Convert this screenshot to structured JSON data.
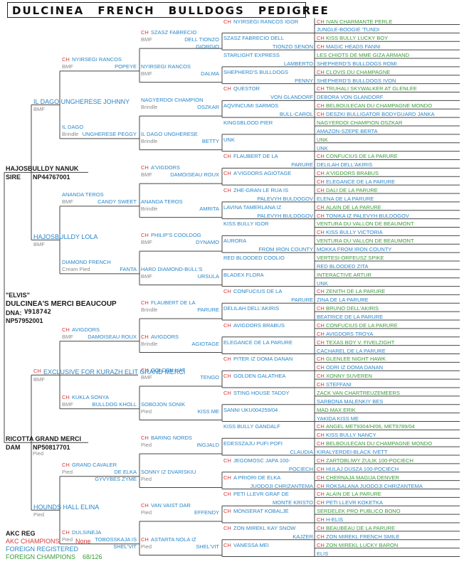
{
  "title": "DULCINEA   FRENCH   BULLDOGS   PEDIGREE",
  "labels": [
    {
      "text": "CH",
      "c": "red"
    },
    {
      "text": "IVAN CHARMANTE PERLE",
      "c": "green"
    },
    {
      "text": "JUNGLE-BOOGIE 'TUNDI",
      "c": "blue"
    },
    {
      "text": "CH",
      "c": "red"
    },
    {
      "text": "KISS BULLY LUCKY BOY",
      "c": "green"
    },
    {
      "text": "CH",
      "c": "red"
    },
    {
      "text": "MAGIC HEADS FANNI",
      "c": "blue"
    },
    {
      "text": "LES CHIOTS DE MME GIZA ARMAND",
      "c": "green"
    },
    {
      "text": "SHEPHERD'S BULLDOGS ROMI",
      "c": "blue"
    },
    {
      "text": "CH",
      "c": "red"
    },
    {
      "text": "CLOVIS DU CHAMPAGNE",
      "c": "green"
    },
    {
      "text": "SHEPHERD'S BULLDOGS IVON",
      "c": "blue"
    },
    {
      "text": "CH",
      "c": "red"
    },
    {
      "text": "TRUHALI SKYWALKER AT GLENLEE",
      "c": "green"
    },
    {
      "text": "DEBORA VON GLANDORF",
      "c": "blue"
    },
    {
      "text": "CH",
      "c": "red"
    },
    {
      "text": "BELBOULECAN DU CHAMPAGNE MONDO",
      "c": "green"
    },
    {
      "text": "CH",
      "c": "red"
    },
    {
      "text": "DESZKI BULLIGATOR BODYGUARD JANKA",
      "c": "blue"
    },
    {
      "text": "NAGYERDOI CHAMPION OSZKAR",
      "c": "green"
    },
    {
      "text": "AMAZON-SZEPE BERTA",
      "c": "blue"
    },
    {
      "text": "UNK",
      "c": "green"
    },
    {
      "text": "UNK",
      "c": "blue"
    },
    {
      "text": "CH",
      "c": "red"
    },
    {
      "text": "CONFUCIUS DE LA PARURE",
      "c": "green"
    },
    {
      "text": "DELILAH DELL'AKIRIS",
      "c": "blue"
    },
    {
      "text": "CH",
      "c": "red"
    },
    {
      "text": "A'VIGDORS BRABUS",
      "c": "green"
    },
    {
      "text": "CH",
      "c": "red"
    },
    {
      "text": "ELEGANCE DE LA PARURE",
      "c": "blue"
    },
    {
      "text": "CH",
      "c": "red"
    },
    {
      "text": "DALI DE LA PARURE",
      "c": "green"
    },
    {
      "text": "ELENA DE LA PARURE",
      "c": "blue"
    },
    {
      "text": "CH",
      "c": "red"
    },
    {
      "text": "ALAIN DE LA PARURE",
      "c": "green"
    },
    {
      "text": "CH",
      "c": "red"
    },
    {
      "text": "TONIKA IZ PALEVYH BULDOGOV",
      "c": "blue"
    },
    {
      "text": "VENTURA DU VALLON DE BEAUMONT",
      "c": "green"
    },
    {
      "text": "CH",
      "c": "red"
    },
    {
      "text": "KISS BULLY VICTORIA",
      "c": "blue"
    },
    {
      "text": "VENTURA DU VALLON DE BEAUMONT",
      "c": "green"
    },
    {
      "text": "MOKKA FROM IRON COUNTY",
      "c": "blue"
    },
    {
      "text": "VERTESI-ORFEUSZ SPIKE",
      "c": "green"
    },
    {
      "text": "RED BLOODED ZITA",
      "c": "blue"
    },
    {
      "text": "INTERACTIVE ARTUR",
      "c": "green"
    },
    {
      "text": "UNK",
      "c": "blue"
    },
    {
      "text": "CH",
      "c": "red"
    },
    {
      "text": "ZENITH DE LA PARURE",
      "c": "green"
    },
    {
      "text": "ZINA DE LA PARURE",
      "c": "blue"
    },
    {
      "text": "CH",
      "c": "red"
    },
    {
      "text": "BRUNO DELL'AKIRIS",
      "c": "green"
    },
    {
      "text": "BEATRICE DE LA PARURE",
      "c": "blue"
    },
    {
      "text": "CH",
      "c": "red"
    },
    {
      "text": "CONFUCIUS DE LA PARURE",
      "c": "green"
    },
    {
      "text": "CH",
      "c": "red"
    },
    {
      "text": "AVIGDORS TROYA",
      "c": "blue"
    },
    {
      "text": "CH",
      "c": "red"
    },
    {
      "text": "TEXAS BOY V. FIVELZIGHT",
      "c": "green"
    },
    {
      "text": "CACHAREL DE LA PARURE",
      "c": "blue"
    },
    {
      "text": "CH",
      "c": "red"
    },
    {
      "text": "GLENLEE NIGHT HAWK",
      "c": "green"
    },
    {
      "text": "CH",
      "c": "red"
    },
    {
      "text": "ODRI IZ DOMA DANAN",
      "c": "blue"
    },
    {
      "text": "CH",
      "c": "red"
    },
    {
      "text": "XONNY SUVEREN",
      "c": "green"
    },
    {
      "text": "CH",
      "c": "red"
    },
    {
      "text": "STEFFANI",
      "c": "blue"
    },
    {
      "text": "ZACK VAN CHARTREUZEMEERS",
      "c": "green"
    },
    {
      "text": "SARBONA MALENKIY BES",
      "c": "blue"
    },
    {
      "text": "MAD MAX ERIK",
      "c": "green"
    },
    {
      "text": "YAKIDA KISS ME",
      "c": "blue"
    },
    {
      "text": "CH",
      "c": "red"
    },
    {
      "text": "ANGEL MET9304/H/06, MET9789/04",
      "c": "green"
    },
    {
      "text": "CH",
      "c": "red"
    },
    {
      "text": "KISS BULLY NANCY",
      "c": "blue"
    },
    {
      "text": "CH",
      "c": "red"
    },
    {
      "text": "BELBOULECAN DU CHAMPAGNE MONDO",
      "c": "green"
    },
    {
      "text": "KIRALYERDEI-BLACK IVETT",
      "c": "blue"
    },
    {
      "text": "CH",
      "c": "red"
    },
    {
      "text": "ZARTOBLIWY ZULIK 100-POCIECH",
      "c": "green"
    },
    {
      "text": "CH",
      "c": "red"
    },
    {
      "text": "HULAJ DUSZA 100-POCIECH",
      "c": "blue"
    },
    {
      "text": "CH",
      "c": "red"
    },
    {
      "text": "CHERNAJA MAGIJA DENVER",
      "c": "green"
    },
    {
      "text": "CH",
      "c": "red"
    },
    {
      "text": "ROKSALANA JUODOJI CHRIZANTEMA",
      "c": "blue"
    },
    {
      "text": "CH",
      "c": "red"
    },
    {
      "text": "ALAIN DE LA PARURE",
      "c": "green"
    },
    {
      "text": "CH",
      "c": "red"
    },
    {
      "text": "PETI LLEVR KOKETKA",
      "c": "blue"
    },
    {
      "text": "SERDELEK PRO PUBLICO BONO",
      "c": "green"
    },
    {
      "text": "CH",
      "c": "red"
    },
    {
      "text": "H-ELIS",
      "c": "blue"
    },
    {
      "text": "CH",
      "c": "red"
    },
    {
      "text": "BEAUBEAU DE LA PARURE",
      "c": "green"
    },
    {
      "text": "CH",
      "c": "red"
    },
    {
      "text": "ZON MIREKL FRENCH SMILE",
      "c": "blue"
    },
    {
      "text": "CH",
      "c": "red"
    },
    {
      "text": "ZON MIREKL LUCKY BARON",
      "c": "green"
    },
    {
      "text": "ELIS",
      "c": "blue"
    }
  ],
  "gen4": [
    {
      "ch": "CH",
      "a": "NYIRSEGI RANCOS IGOR",
      "b": ""
    },
    {
      "ch": "",
      "a": "SZASZ FABRECIO DELL",
      "b": "TIONZO SENON"
    },
    {
      "ch": "",
      "a": "STARLIGHT EXPRESS",
      "b": "LAMBERTO"
    },
    {
      "ch": "",
      "a": "SHEPHERD'S BULLDOGS",
      "b": "PENNY"
    },
    {
      "ch": "CH",
      "a": "QUESTOR",
      "b": "VON GLANDORF"
    },
    {
      "ch": "",
      "a": "AQVINCUMI SARMOS",
      "b": "BULL-CAROL"
    },
    {
      "ch": "",
      "a": "KINGSBLOOD PIER",
      "b": ""
    },
    {
      "ch": "",
      "a": "UNK",
      "b": ""
    },
    {
      "ch": "CH",
      "a": "FLAUBERT DE LA",
      "b": "PARURE"
    },
    {
      "ch": "CH",
      "a": "A'VIGDORS AGIOTAGE",
      "b": ""
    },
    {
      "ch": "CH",
      "a": "ZHE-GRAN LE RUA IS",
      "b": "PALEVYH BULDOGOV"
    },
    {
      "ch": "",
      "a": "LAVINA TAMERLANA IZ",
      "b": "PALEVYH BULDOGOV"
    },
    {
      "ch": "",
      "a": "KISS BULLY IGOR",
      "b": ""
    },
    {
      "ch": "",
      "a": "AURORA",
      "b": "FROM IRON COUNTY"
    },
    {
      "ch": "",
      "a": "RED BLOODED COOLIO",
      "b": ""
    },
    {
      "ch": "",
      "a": "BLADEX FLORA",
      "b": ""
    },
    {
      "ch": "CH",
      "a": "CONFUCIUS DE LA",
      "b": "PARURE"
    },
    {
      "ch": "",
      "a": "DELILAH DELL'AKIRIS",
      "b": ""
    },
    {
      "ch": "CH",
      "a": "AVIGDORS BRABUS",
      "b": ""
    },
    {
      "ch": "",
      "a": "ELEGANCE DE LA PARURE",
      "b": ""
    },
    {
      "ch": "CH",
      "a": "PITER IZ DOMA DANAN",
      "b": ""
    },
    {
      "ch": "CH",
      "a": "GOLDEN GALATHEA",
      "b": ""
    },
    {
      "ch": "CH",
      "a": "STING HOUSE TADDY",
      "b": ""
    },
    {
      "ch": "",
      "a": "SANNI UKU004259/04",
      "b": ""
    },
    {
      "ch": "",
      "a": "KISS BULLY GANDALF",
      "b": ""
    },
    {
      "ch": "",
      "a": "EDESSZAJU PUFI POFI",
      "b": "CLAUDIA"
    },
    {
      "ch": "CH",
      "a": "JEGOMOSC JAPA 100-",
      "b": "POCIECH"
    },
    {
      "ch": "CH",
      "a": "A PRIORI DE ELKA",
      "b": "JUODOJI CHRIZANTEMA"
    },
    {
      "ch": "CH",
      "a": "PETI LLEVR GRAF DE",
      "b": "MONTE KRISTO"
    },
    {
      "ch": "CH",
      "a": "MONSERAT KOBALJE",
      "b": ""
    },
    {
      "ch": "CH",
      "a": "ZON MIREKL KAY SNOW",
      "b": "KAJZER"
    },
    {
      "ch": "CH",
      "a": "VANESSA MEI",
      "b": ""
    }
  ],
  "gen3": [
    {
      "ch": "CH",
      "a": "SZASZ FABRECIO",
      "b": "DELL TIONZO",
      "sub": "BMF",
      "b2": "GIORGIO"
    },
    {
      "ch": "",
      "a": "NYIRSEGI RANCOS",
      "b": "DALMA",
      "sub": "BMF"
    },
    {
      "ch": "",
      "a": "NAGYERDOI CHAMPION",
      "b": "OSZKAR",
      "sub": "Brindle"
    },
    {
      "ch": "",
      "a": "IL DAGO UNGHERESE",
      "b": "BETTY",
      "sub": "Brindle"
    },
    {
      "ch": "CH",
      "a": "A'VIGDORS",
      "b": "DAMOISEAU ROUX",
      "sub": "BMF"
    },
    {
      "ch": "",
      "a": "ANANDA TEROS",
      "b": "AMRITA",
      "sub": "Brindle"
    },
    {
      "ch": "CH",
      "a": "PHILIP'S COOLDOG",
      "b": "DYNAMO",
      "sub": "BMF"
    },
    {
      "ch": "",
      "a": "HARD DIAMOND-BULL'S",
      "b": "URSULA",
      "sub": "BMF"
    },
    {
      "ch": "CH",
      "a": "FLAUBERT DE LA",
      "b": "PARURE",
      "sub": "Brindle"
    },
    {
      "ch": "CH",
      "a": "AVIGDORS",
      "b": "AGIOTAGE",
      "sub": "Brindle"
    },
    {
      "ch": "CH",
      "a": "GOLDEN HAT",
      "b": "TENGO",
      "sub": "BMF"
    },
    {
      "ch": "",
      "a": "SOBOJON SONIK",
      "b": "KISS ME",
      "sub": "Pied"
    },
    {
      "ch": "CH",
      "a": "BARING NORDS",
      "b": "INGJALD",
      "sub": "Pied"
    },
    {
      "ch": "",
      "a": "SONNY IZ DVARISKIU",
      "b": "",
      "sub": "Pied"
    },
    {
      "ch": "CH",
      "a": "VAN VAIST DAR",
      "b": "EFFENDY",
      "sub": "Pied"
    },
    {
      "ch": "CH",
      "a": "ASTARTA NOLA IZ",
      "b": "SHEL'VIT",
      "sub": "Pied"
    }
  ],
  "gen2": [
    {
      "ch": "CH",
      "a": "NYIRSEGI RANCOS",
      "b": "POPEYE",
      "sub": "BMF"
    },
    {
      "ch": "",
      "a": "IL DAGO",
      "b": "UNGHERESE PEGGY",
      "sub": "Brindle"
    },
    {
      "ch": "",
      "a": "ANANDA TEROS",
      "b": "CANDY SWEET",
      "sub": "BMF"
    },
    {
      "ch": "",
      "a": "DIAMOND FRENCH",
      "b": "FANTA",
      "sub": "Cream Pied"
    },
    {
      "ch": "CH",
      "a": "AVIGDORS",
      "b": "DAMOISEAU ROUX",
      "sub": "BMF"
    },
    {
      "ch": "CH",
      "a": "KUKLA SONYA",
      "b": "BULLDOG KHOLL",
      "sub": "BMF"
    },
    {
      "ch": "CH",
      "a": "GRAND CAVALER",
      "b": "DE ELKA",
      "b2": "GYVYBES ZYME",
      "sub": "Pied"
    },
    {
      "ch": "CH",
      "a": "DULSINEJA",
      "b": "TOBOSSKAJA IS",
      "b2": "SHEL'VIT",
      "sub": "Pied"
    }
  ],
  "gen1": [
    {
      "ch": "",
      "a": "IL DAGO UNGHERESE JOHNNY",
      "sub": "BMF"
    },
    {
      "ch": "",
      "a": "HAJOSBULLDY LOLA",
      "sub": "BMF"
    },
    {
      "ch": "CH",
      "a": "EXCLUSIVE FOR KURAZH ELIT GRAND MERCI",
      "sub": "BMF"
    },
    {
      "ch": "",
      "a": "HOUNDS HALL ELINA",
      "sub": "Pied"
    }
  ],
  "sire": {
    "name": "HAJOSBULLDY NANUK",
    "role": "SIRE",
    "reg": "NP44767001"
  },
  "dam": {
    "name": "RICOTTA GRAND MERCI",
    "role": "DAM",
    "reg": "NP50817701",
    "sub": "Pied"
  },
  "subject": {
    "nick": "\"ELVIS\"",
    "name": "DULCINEA'S MERCI BEAUCOUP",
    "dna_label": "DNA:",
    "dna": "V918742",
    "reg": "NP57952001"
  },
  "footer": {
    "akc": "AKC REG",
    "akc_ch": "AKC CHAMPIONS",
    "akc_ch_val": "None",
    "foreign": "FOREIGN REGISTERED",
    "foreign_ch": "FOREIGN CHAMPIONS",
    "foreign_ch_val": "68/126"
  }
}
